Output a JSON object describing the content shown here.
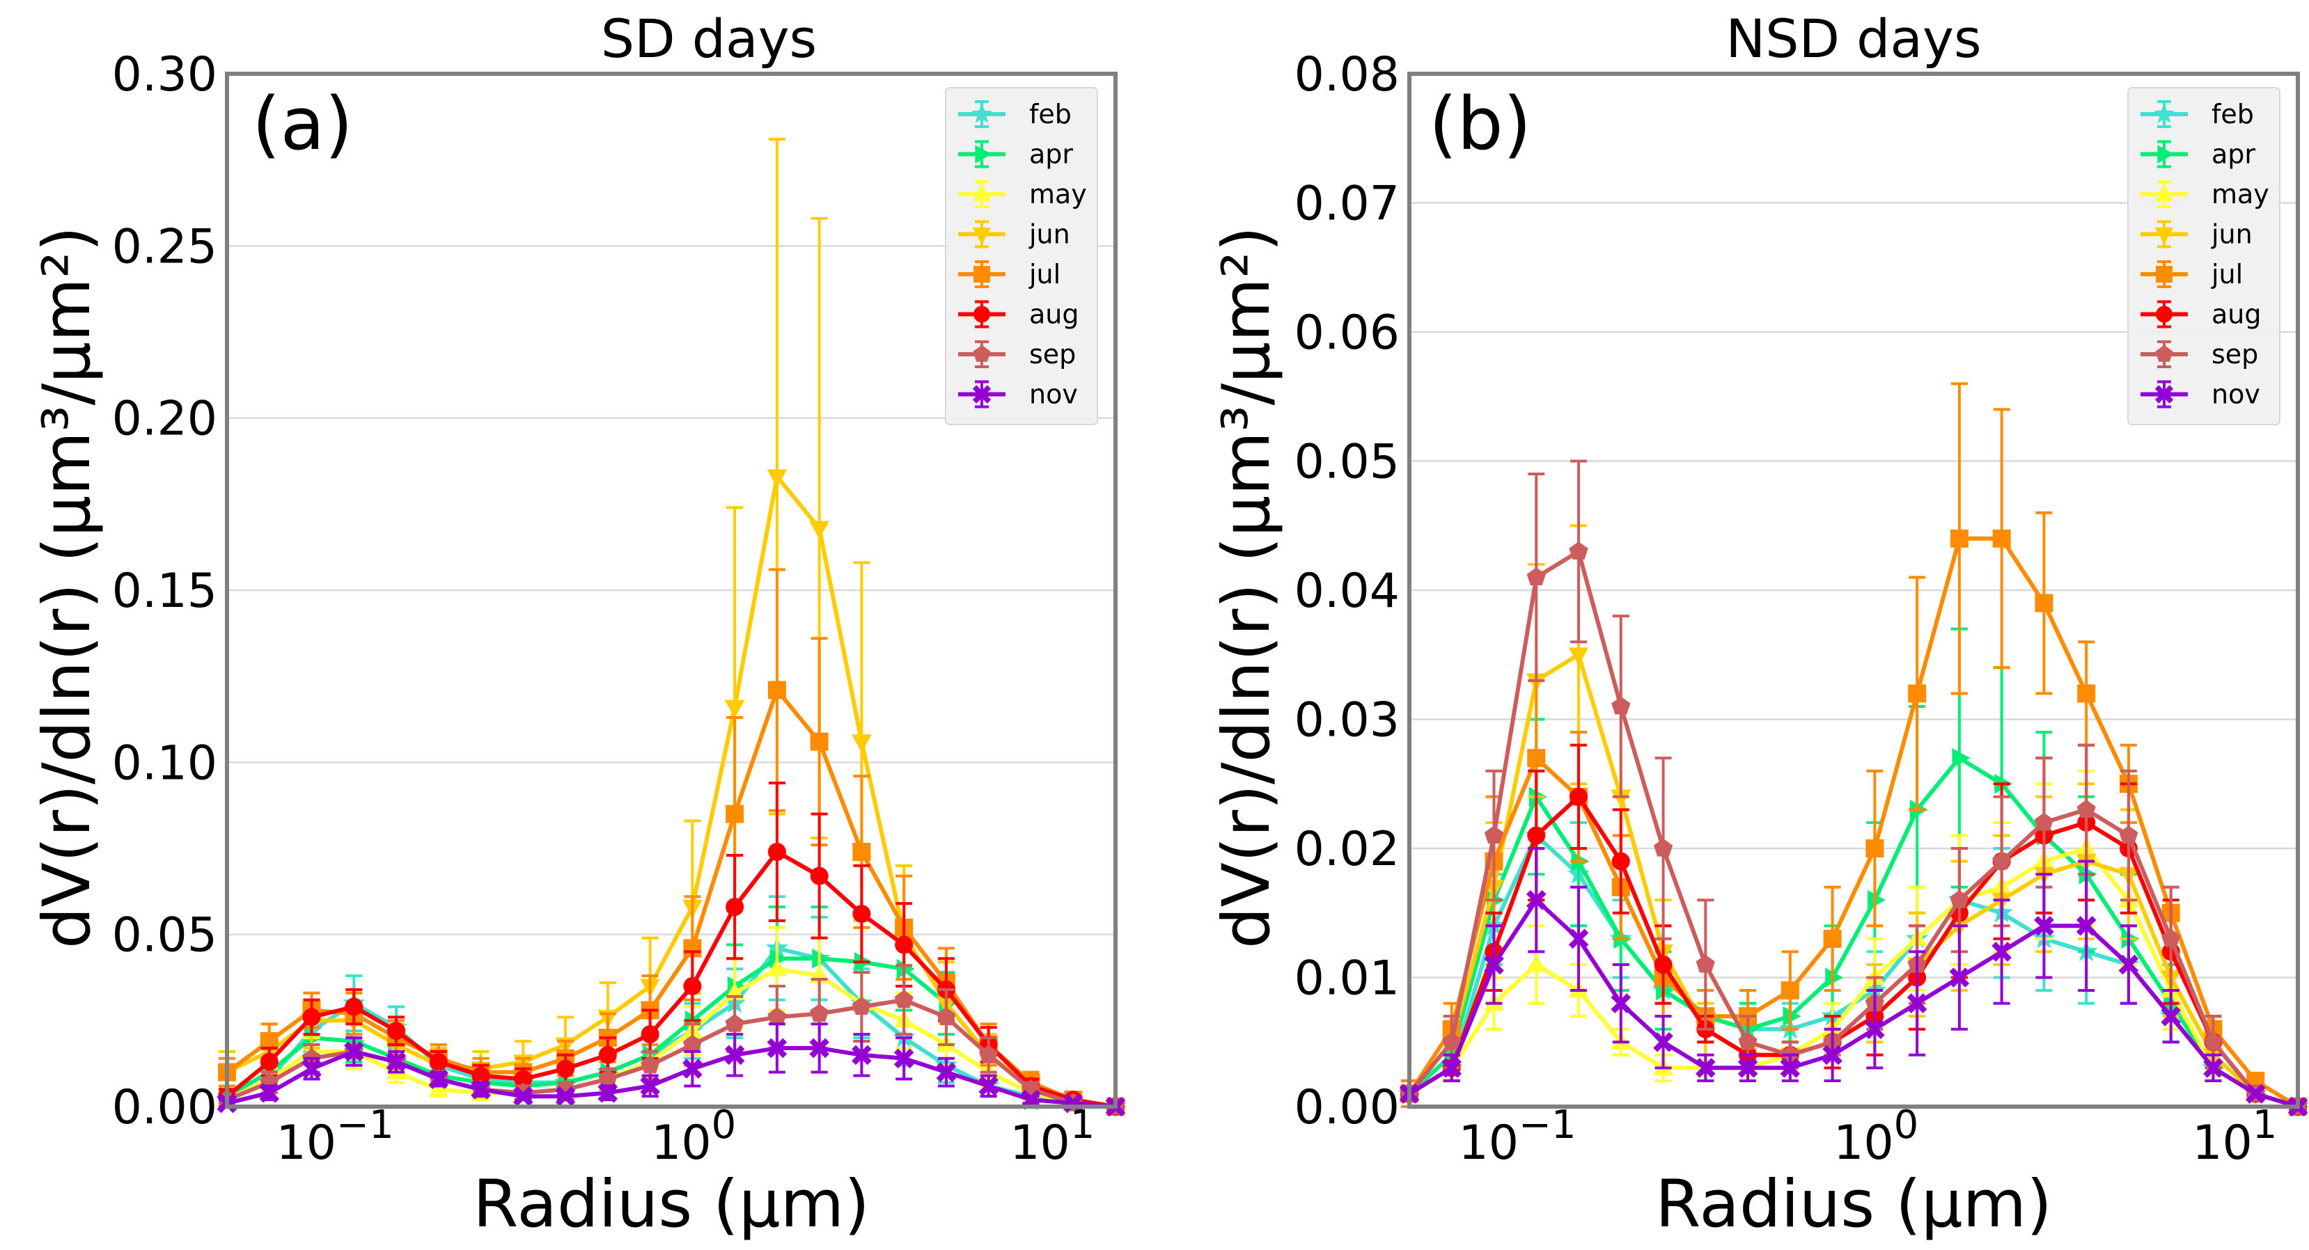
{
  "chart_data": [
    {
      "type": "line",
      "title": "SD days",
      "panel_label": "(a)",
      "xlabel": "Radius (μm)",
      "ylabel": "dV(r)/dln(r) (μm³/μm²)",
      "xscale": "log",
      "xlim": [
        0.05,
        15
      ],
      "ylim": [
        0,
        0.3
      ],
      "yticks": [
        0,
        0.05,
        0.1,
        0.15,
        0.2,
        0.25,
        0.3
      ],
      "ytick_labels": [
        "0.00",
        "0.05",
        "0.10",
        "0.15",
        "0.20",
        "0.25",
        "0.30"
      ],
      "xticks": [
        0.1,
        1,
        10
      ],
      "xtick_labels": [
        {
          "base": "10",
          "exp": "−1"
        },
        {
          "base": "10",
          "exp": "0"
        },
        {
          "base": "10",
          "exp": "1"
        }
      ],
      "grid": "horizontal",
      "legend_location": "top-right",
      "x": [
        0.05,
        0.065604,
        0.086077,
        0.112939,
        0.148184,
        0.194429,
        0.255105,
        0.334716,
        0.439173,
        0.576227,
        0.756052,
        0.99199,
        1.30156,
        1.7077,
        2.24062,
        2.93981,
        3.85727,
        5.06094,
        6.64034,
        8.71249,
        11.4313,
        15.0
      ],
      "series": [
        {
          "name": "feb",
          "color": "#40e0d0",
          "marker": "star",
          "values": [
            0.002,
            0.008,
            0.022,
            0.03,
            0.023,
            0.012,
            0.008,
            0.007,
            0.007,
            0.01,
            0.015,
            0.022,
            0.03,
            0.046,
            0.043,
            0.03,
            0.02,
            0.012,
            0.006,
            0.003,
            0.001,
            0.0
          ],
          "errors": [
            0.002,
            0.004,
            0.006,
            0.008,
            0.006,
            0.004,
            0.003,
            0.003,
            0.003,
            0.004,
            0.006,
            0.008,
            0.01,
            0.015,
            0.012,
            0.01,
            0.008,
            0.005,
            0.003,
            0.002,
            0.001,
            0.0
          ]
        },
        {
          "name": "apr",
          "color": "#00ee76",
          "marker": "triangle-right",
          "values": [
            0.003,
            0.01,
            0.02,
            0.019,
            0.014,
            0.009,
            0.007,
            0.006,
            0.007,
            0.01,
            0.015,
            0.025,
            0.035,
            0.043,
            0.043,
            0.042,
            0.04,
            0.03,
            0.015,
            0.006,
            0.002,
            0.0
          ],
          "errors": [
            0.002,
            0.004,
            0.005,
            0.006,
            0.004,
            0.003,
            0.003,
            0.002,
            0.003,
            0.004,
            0.006,
            0.008,
            0.012,
            0.015,
            0.015,
            0.014,
            0.012,
            0.009,
            0.005,
            0.003,
            0.001,
            0.0
          ]
        },
        {
          "name": "may",
          "color": "#ffff33",
          "marker": "triangle-up",
          "values": [
            0.002,
            0.008,
            0.016,
            0.016,
            0.01,
            0.005,
            0.004,
            0.004,
            0.005,
            0.008,
            0.013,
            0.022,
            0.033,
            0.04,
            0.038,
            0.03,
            0.025,
            0.018,
            0.01,
            0.004,
            0.001,
            0.0
          ],
          "errors": [
            0.002,
            0.003,
            0.004,
            0.005,
            0.003,
            0.002,
            0.002,
            0.002,
            0.002,
            0.003,
            0.005,
            0.007,
            0.01,
            0.012,
            0.011,
            0.009,
            0.008,
            0.006,
            0.004,
            0.002,
            0.001,
            0.0
          ]
        },
        {
          "name": "jun",
          "color": "#ffcc00",
          "marker": "triangle-down",
          "values": [
            0.01,
            0.016,
            0.025,
            0.025,
            0.018,
            0.012,
            0.011,
            0.013,
            0.018,
            0.026,
            0.035,
            0.058,
            0.116,
            0.183,
            0.168,
            0.106,
            0.05,
            0.03,
            0.015,
            0.006,
            0.002,
            0.0
          ],
          "errors": [
            0.006,
            0.008,
            0.008,
            0.008,
            0.006,
            0.005,
            0.005,
            0.006,
            0.008,
            0.01,
            0.014,
            0.025,
            0.058,
            0.098,
            0.09,
            0.052,
            0.02,
            0.012,
            0.006,
            0.003,
            0.001,
            0.0
          ]
        },
        {
          "name": "jul",
          "color": "#ff8c00",
          "marker": "square",
          "values": [
            0.01,
            0.019,
            0.028,
            0.027,
            0.02,
            0.014,
            0.01,
            0.01,
            0.014,
            0.02,
            0.028,
            0.046,
            0.085,
            0.121,
            0.106,
            0.074,
            0.052,
            0.036,
            0.018,
            0.007,
            0.002,
            0.0
          ],
          "errors": [
            0.004,
            0.005,
            0.005,
            0.006,
            0.005,
            0.004,
            0.004,
            0.004,
            0.005,
            0.007,
            0.01,
            0.015,
            0.028,
            0.035,
            0.03,
            0.022,
            0.015,
            0.01,
            0.006,
            0.003,
            0.001,
            0.0
          ]
        },
        {
          "name": "aug",
          "color": "#ff0000",
          "marker": "circle",
          "values": [
            0.003,
            0.013,
            0.026,
            0.029,
            0.022,
            0.013,
            0.009,
            0.008,
            0.011,
            0.015,
            0.021,
            0.035,
            0.058,
            0.074,
            0.067,
            0.056,
            0.047,
            0.034,
            0.018,
            0.006,
            0.002,
            0.0
          ],
          "errors": [
            0.002,
            0.004,
            0.005,
            0.005,
            0.004,
            0.003,
            0.003,
            0.003,
            0.004,
            0.005,
            0.007,
            0.01,
            0.015,
            0.02,
            0.018,
            0.014,
            0.012,
            0.009,
            0.005,
            0.002,
            0.001,
            0.0
          ]
        },
        {
          "name": "sep",
          "color": "#cd5c5c",
          "marker": "pentagon",
          "values": [
            0.002,
            0.007,
            0.014,
            0.016,
            0.013,
            0.008,
            0.005,
            0.004,
            0.005,
            0.008,
            0.012,
            0.018,
            0.024,
            0.026,
            0.027,
            0.029,
            0.031,
            0.026,
            0.015,
            0.005,
            0.001,
            0.0
          ],
          "errors": [
            0.001,
            0.003,
            0.004,
            0.004,
            0.003,
            0.002,
            0.002,
            0.002,
            0.002,
            0.003,
            0.004,
            0.006,
            0.008,
            0.009,
            0.01,
            0.01,
            0.01,
            0.008,
            0.005,
            0.002,
            0.001,
            0.0
          ]
        },
        {
          "name": "nov",
          "color": "#9400d3",
          "marker": "x-filled",
          "values": [
            0.001,
            0.004,
            0.011,
            0.016,
            0.013,
            0.008,
            0.005,
            0.003,
            0.003,
            0.004,
            0.006,
            0.011,
            0.015,
            0.017,
            0.017,
            0.015,
            0.014,
            0.01,
            0.006,
            0.002,
            0.001,
            0.0
          ],
          "errors": [
            0.001,
            0.002,
            0.003,
            0.004,
            0.003,
            0.002,
            0.002,
            0.001,
            0.001,
            0.002,
            0.003,
            0.005,
            0.006,
            0.007,
            0.007,
            0.006,
            0.006,
            0.004,
            0.003,
            0.001,
            0.0,
            0.0
          ]
        }
      ]
    },
    {
      "type": "line",
      "title": "NSD days",
      "panel_label": "(b)",
      "xlabel": "Radius (μm)",
      "ylabel": "dV(r)/dln(r) (μm³/μm²)",
      "xscale": "log",
      "xlim": [
        0.05,
        15
      ],
      "ylim": [
        0,
        0.08
      ],
      "yticks": [
        0,
        0.01,
        0.02,
        0.03,
        0.04,
        0.05,
        0.06,
        0.07,
        0.08
      ],
      "ytick_labels": [
        "0.00",
        "0.01",
        "0.02",
        "0.03",
        "0.04",
        "0.05",
        "0.06",
        "0.07",
        "0.08"
      ],
      "xticks": [
        0.1,
        1,
        10
      ],
      "xtick_labels": [
        {
          "base": "10",
          "exp": "−1"
        },
        {
          "base": "10",
          "exp": "0"
        },
        {
          "base": "10",
          "exp": "1"
        }
      ],
      "grid": "horizontal",
      "legend_location": "top-right",
      "x": [
        0.05,
        0.065604,
        0.086077,
        0.112939,
        0.148184,
        0.194429,
        0.255105,
        0.334716,
        0.439173,
        0.576227,
        0.756052,
        0.99199,
        1.30156,
        1.7077,
        2.24062,
        2.93981,
        3.85727,
        5.06094,
        6.64034,
        8.71249,
        11.4313,
        15.0
      ],
      "series": [
        {
          "name": "feb",
          "color": "#40e0d0",
          "marker": "star",
          "values": [
            0.001,
            0.003,
            0.014,
            0.021,
            0.018,
            0.013,
            0.009,
            0.007,
            0.006,
            0.006,
            0.007,
            0.009,
            0.013,
            0.016,
            0.015,
            0.013,
            0.012,
            0.011,
            0.007,
            0.003,
            0.001,
            0.0
          ],
          "errors": [
            0.001,
            0.001,
            0.004,
            0.005,
            0.004,
            0.003,
            0.002,
            0.002,
            0.002,
            0.002,
            0.002,
            0.003,
            0.004,
            0.005,
            0.005,
            0.004,
            0.004,
            0.003,
            0.002,
            0.001,
            0.0,
            0.0
          ]
        },
        {
          "name": "apr",
          "color": "#00ee76",
          "marker": "triangle-right",
          "values": [
            0.001,
            0.004,
            0.016,
            0.024,
            0.019,
            0.013,
            0.009,
            0.007,
            0.006,
            0.007,
            0.01,
            0.016,
            0.023,
            0.027,
            0.025,
            0.021,
            0.018,
            0.013,
            0.008,
            0.003,
            0.001,
            0.0
          ],
          "errors": [
            0.001,
            0.002,
            0.005,
            0.006,
            0.005,
            0.004,
            0.003,
            0.002,
            0.002,
            0.002,
            0.004,
            0.006,
            0.008,
            0.01,
            0.009,
            0.008,
            0.006,
            0.005,
            0.003,
            0.001,
            0.0,
            0.0
          ]
        },
        {
          "name": "may",
          "color": "#ffff33",
          "marker": "triangle-up",
          "values": [
            0.001,
            0.003,
            0.008,
            0.011,
            0.009,
            0.005,
            0.003,
            0.003,
            0.003,
            0.004,
            0.006,
            0.01,
            0.013,
            0.016,
            0.017,
            0.019,
            0.02,
            0.016,
            0.009,
            0.003,
            0.001,
            0.0
          ],
          "errors": [
            0.0,
            0.001,
            0.002,
            0.003,
            0.002,
            0.001,
            0.001,
            0.001,
            0.001,
            0.001,
            0.002,
            0.003,
            0.004,
            0.005,
            0.005,
            0.006,
            0.006,
            0.005,
            0.003,
            0.001,
            0.0,
            0.0
          ]
        },
        {
          "name": "jun",
          "color": "#ffcc00",
          "marker": "triangle-down",
          "values": [
            0.001,
            0.005,
            0.017,
            0.033,
            0.035,
            0.024,
            0.012,
            0.006,
            0.004,
            0.004,
            0.005,
            0.008,
            0.011,
            0.014,
            0.016,
            0.018,
            0.019,
            0.018,
            0.01,
            0.004,
            0.001,
            0.0
          ],
          "errors": [
            0.001,
            0.002,
            0.005,
            0.009,
            0.01,
            0.007,
            0.004,
            0.002,
            0.001,
            0.001,
            0.002,
            0.003,
            0.004,
            0.005,
            0.005,
            0.006,
            0.006,
            0.005,
            0.003,
            0.001,
            0.0,
            0.0
          ]
        },
        {
          "name": "jul",
          "color": "#ff8c00",
          "marker": "square",
          "values": [
            0.001,
            0.006,
            0.019,
            0.027,
            0.024,
            0.017,
            0.01,
            0.007,
            0.007,
            0.009,
            0.013,
            0.02,
            0.032,
            0.044,
            0.044,
            0.039,
            0.032,
            0.025,
            0.015,
            0.006,
            0.002,
            0.0
          ],
          "errors": [
            0.001,
            0.002,
            0.005,
            0.006,
            0.005,
            0.004,
            0.003,
            0.002,
            0.002,
            0.003,
            0.004,
            0.006,
            0.009,
            0.012,
            0.01,
            0.007,
            0.004,
            0.003,
            0.002,
            0.001,
            0.0,
            0.0
          ]
        },
        {
          "name": "aug",
          "color": "#ff0000",
          "marker": "circle",
          "values": [
            0.001,
            0.003,
            0.012,
            0.021,
            0.024,
            0.019,
            0.011,
            0.006,
            0.004,
            0.004,
            0.005,
            0.007,
            0.01,
            0.015,
            0.019,
            0.021,
            0.022,
            0.02,
            0.012,
            0.005,
            0.001,
            0.0
          ],
          "errors": [
            0.0,
            0.001,
            0.003,
            0.005,
            0.004,
            0.004,
            0.003,
            0.001,
            0.001,
            0.001,
            0.002,
            0.003,
            0.004,
            0.005,
            0.006,
            0.006,
            0.006,
            0.005,
            0.004,
            0.002,
            0.0,
            0.0
          ]
        },
        {
          "name": "sep",
          "color": "#cd5c5c",
          "marker": "pentagon",
          "values": [
            0.001,
            0.005,
            0.021,
            0.041,
            0.043,
            0.031,
            0.02,
            0.011,
            0.005,
            0.004,
            0.005,
            0.008,
            0.011,
            0.016,
            0.019,
            0.022,
            0.023,
            0.021,
            0.013,
            0.005,
            0.001,
            0.0
          ],
          "errors": [
            0.0,
            0.002,
            0.005,
            0.008,
            0.007,
            0.007,
            0.007,
            0.005,
            0.002,
            0.001,
            0.001,
            0.002,
            0.003,
            0.004,
            0.005,
            0.005,
            0.005,
            0.005,
            0.004,
            0.002,
            0.0,
            0.0
          ]
        },
        {
          "name": "nov",
          "color": "#9400d3",
          "marker": "x-filled",
          "values": [
            0.001,
            0.003,
            0.011,
            0.016,
            0.013,
            0.008,
            0.005,
            0.003,
            0.003,
            0.003,
            0.004,
            0.006,
            0.008,
            0.01,
            0.012,
            0.014,
            0.014,
            0.011,
            0.007,
            0.003,
            0.001,
            0.0
          ],
          "errors": [
            0.0,
            0.001,
            0.003,
            0.004,
            0.004,
            0.003,
            0.002,
            0.001,
            0.001,
            0.001,
            0.002,
            0.003,
            0.004,
            0.004,
            0.004,
            0.004,
            0.005,
            0.003,
            0.002,
            0.001,
            0.0,
            0.0
          ]
        }
      ]
    }
  ]
}
